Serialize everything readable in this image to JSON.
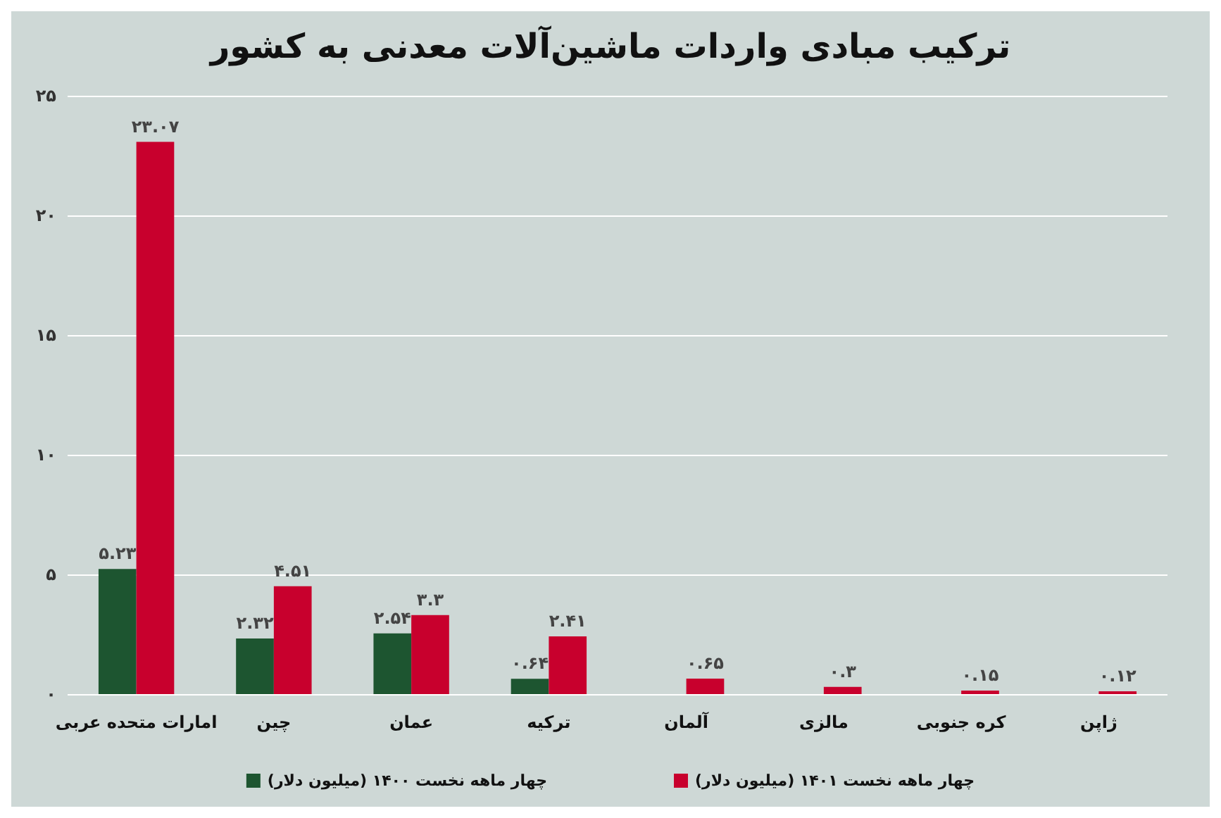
{
  "chart_data": {
    "type": "bar",
    "title": "ترکیب مبادی واردات ماشین‌آلات معدنی به کشور",
    "categories": [
      "امارات متحده عربی",
      "چین",
      "عمان",
      "ترکیه",
      "آلمان",
      "مالزی",
      "کره جنوبی",
      "ژاپن"
    ],
    "series": [
      {
        "name": "چهار ماهه نخست ۱۴۰۰ (میلیون دلار)",
        "color": "#1d5530",
        "values": [
          5.23,
          2.32,
          2.54,
          0.64,
          null,
          null,
          null,
          null
        ],
        "value_labels": [
          "۵.۲۳",
          "۲.۳۲",
          "۲.۵۴",
          "۰.۶۴",
          null,
          null,
          null,
          null
        ]
      },
      {
        "name": "چهار ماهه نخست ۱۴۰۱ (میلیون دلار)",
        "color": "#c8002d",
        "values": [
          23.07,
          4.51,
          3.3,
          2.41,
          0.65,
          0.3,
          0.15,
          0.12
        ],
        "value_labels": [
          "۲۳.۰۷",
          "۴.۵۱",
          "۳.۳",
          "۲.۴۱",
          "۰.۶۵",
          "۰.۳",
          "۰.۱۵",
          "۰.۱۲"
        ]
      }
    ],
    "ylim": [
      0,
      25
    ],
    "yticks": [
      {
        "value": 0,
        "label": "۰"
      },
      {
        "value": 5,
        "label": "۵"
      },
      {
        "value": 10,
        "label": "۱۰"
      },
      {
        "value": 15,
        "label": "۱۵"
      },
      {
        "value": 20,
        "label": "۲۰"
      },
      {
        "value": 25,
        "label": "۲۵"
      }
    ],
    "grid": "y",
    "legend": "bottom"
  }
}
